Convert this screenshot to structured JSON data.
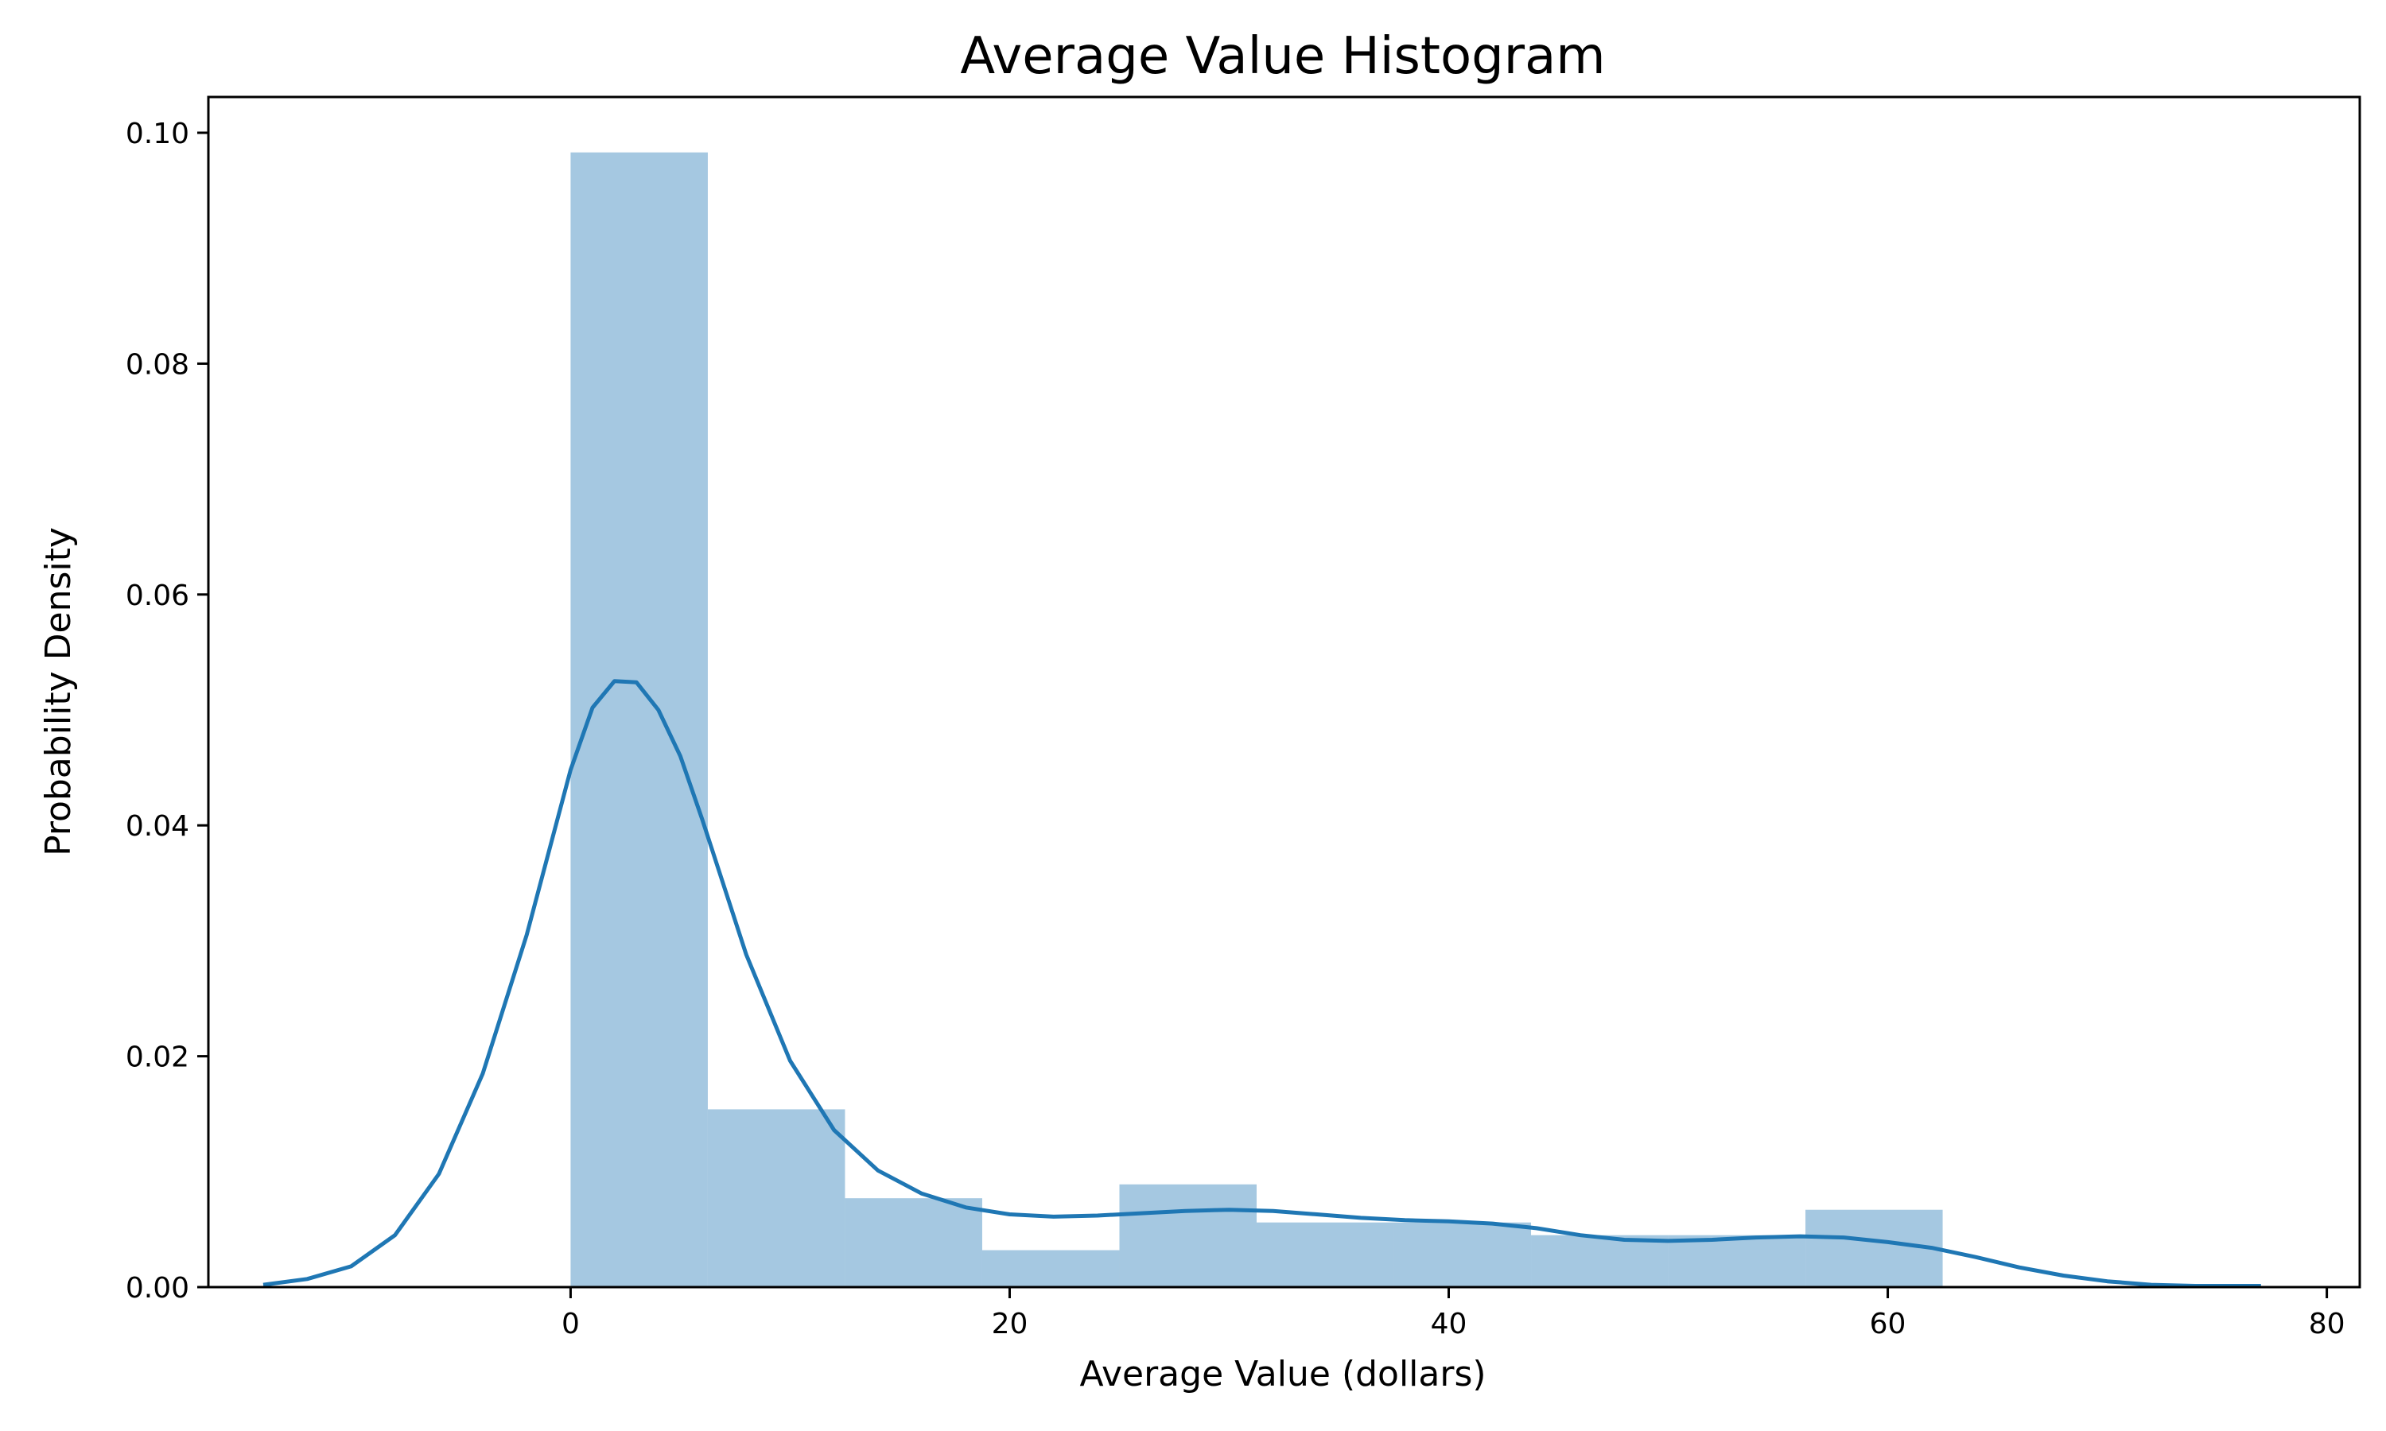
{
  "chart_data": {
    "type": "bar",
    "title": "Average Value Histogram",
    "xlabel": "Average Value (dollars)",
    "ylabel": "Probability Density",
    "xlim": [
      -16.5,
      81.5
    ],
    "ylim": [
      0,
      0.1031
    ],
    "xticks": [
      0,
      20,
      40,
      60,
      80
    ],
    "xtick_labels": [
      "0",
      "20",
      "40",
      "60",
      "80"
    ],
    "yticks": [
      0,
      0.02,
      0.04,
      0.06,
      0.08,
      0.1
    ],
    "ytick_labels": [
      "0.00",
      "0.02",
      "0.04",
      "0.06",
      "0.08",
      "0.10"
    ],
    "bins": [
      {
        "x0": 0.0,
        "x1": 6.25,
        "density": 0.0983
      },
      {
        "x0": 6.25,
        "x1": 12.5,
        "density": 0.0154
      },
      {
        "x0": 12.5,
        "x1": 18.75,
        "density": 0.0077
      },
      {
        "x0": 18.75,
        "x1": 25.0,
        "density": 0.0032
      },
      {
        "x0": 25.0,
        "x1": 31.25,
        "density": 0.0089
      },
      {
        "x0": 31.25,
        "x1": 37.5,
        "density": 0.0056
      },
      {
        "x0": 37.5,
        "x1": 43.75,
        "density": 0.0056
      },
      {
        "x0": 43.75,
        "x1": 50.0,
        "density": 0.0045
      },
      {
        "x0": 50.0,
        "x1": 56.25,
        "density": 0.0045
      },
      {
        "x0": 56.25,
        "x1": 62.5,
        "density": 0.0067
      }
    ],
    "kde": {
      "x": [
        -14,
        -12,
        -10,
        -8,
        -6,
        -4,
        -2,
        0,
        1,
        2,
        3,
        4,
        5,
        6,
        8,
        10,
        12,
        14,
        16,
        18,
        20,
        22,
        24,
        26,
        28,
        30,
        32,
        34,
        36,
        38,
        40,
        42,
        44,
        46,
        48,
        50,
        52,
        54,
        56,
        58,
        60,
        62,
        64,
        66,
        68,
        70,
        72,
        74,
        77
      ],
      "y": [
        0.0002,
        0.0007,
        0.0018,
        0.0045,
        0.0098,
        0.0185,
        0.0305,
        0.0448,
        0.0502,
        0.0525,
        0.0524,
        0.05,
        0.046,
        0.0405,
        0.0288,
        0.0196,
        0.0136,
        0.0101,
        0.0081,
        0.0069,
        0.0063,
        0.0061,
        0.0062,
        0.0064,
        0.0066,
        0.0067,
        0.0066,
        0.0063,
        0.006,
        0.0058,
        0.0057,
        0.0055,
        0.0051,
        0.0045,
        0.0041,
        0.004,
        0.0041,
        0.0043,
        0.0044,
        0.0043,
        0.0039,
        0.0034,
        0.0026,
        0.0017,
        0.001,
        0.0005,
        0.0002,
        0.0001,
        0.0001
      ]
    },
    "bar_color": "#a5c8e1",
    "line_color": "#1f77b4",
    "grid": false,
    "legend": "none"
  }
}
